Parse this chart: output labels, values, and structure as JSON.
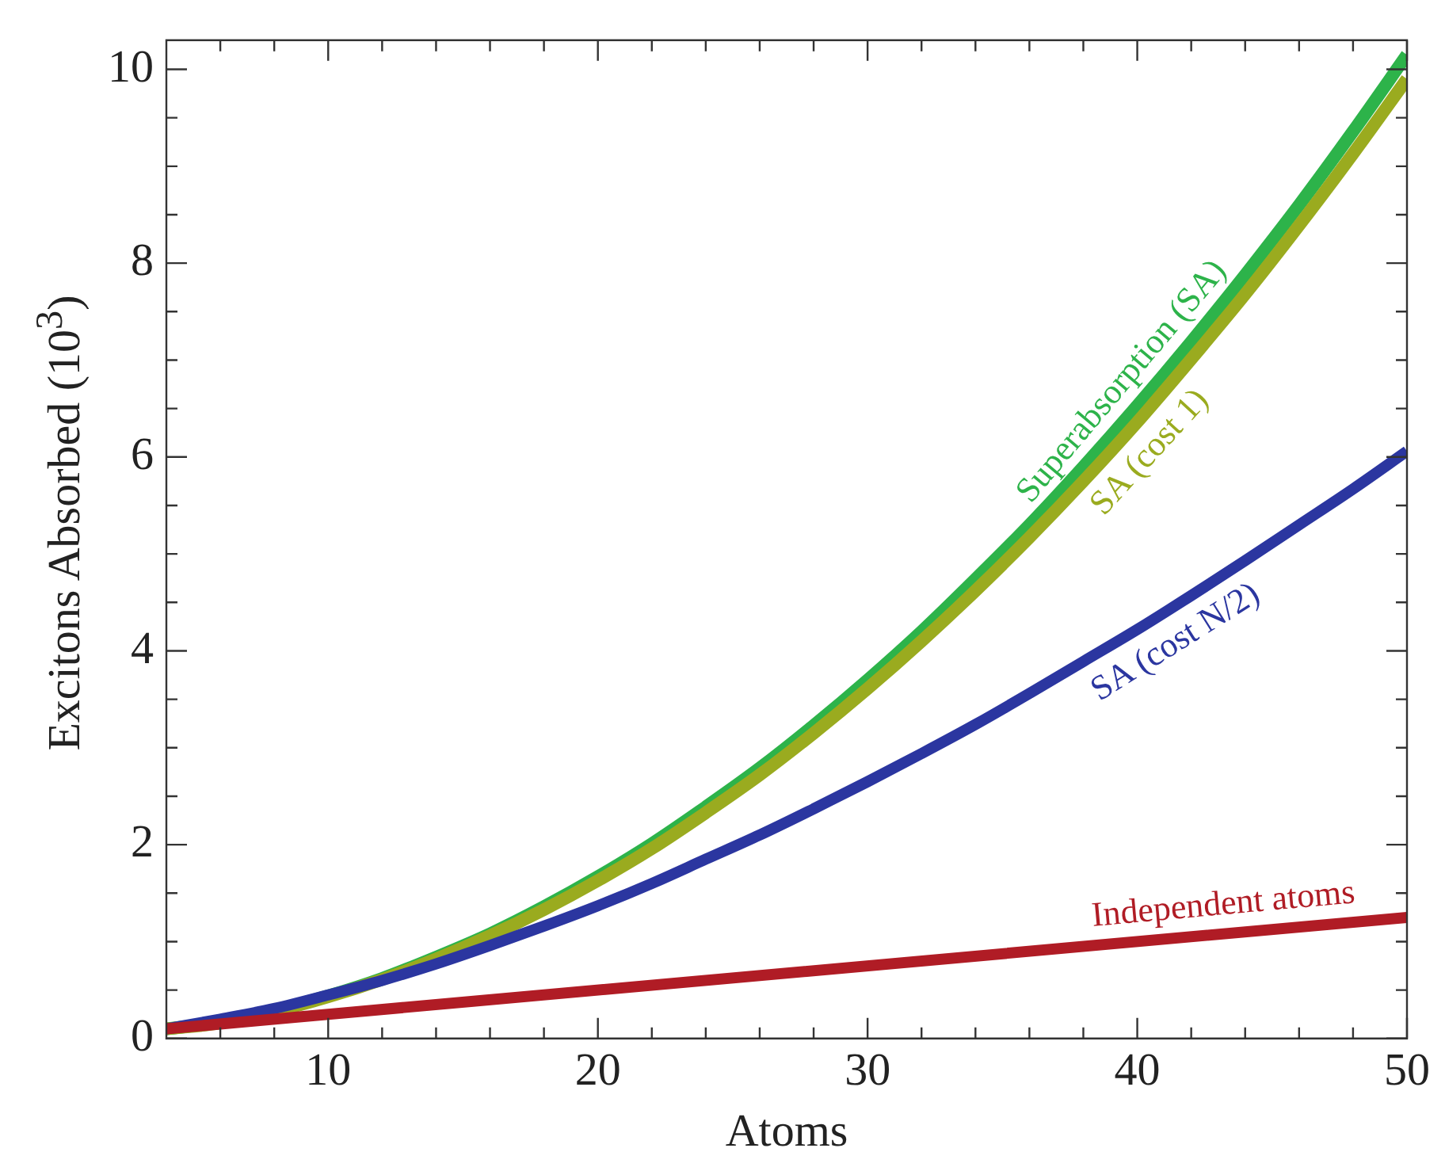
{
  "chart_data": {
    "type": "line",
    "xlabel": "Atoms",
    "ylabel": "Excitons  Absorbed (10$^{3}$)",
    "x": [
      4,
      6,
      8,
      10,
      12,
      14,
      16,
      18,
      20,
      22,
      24,
      26,
      28,
      30,
      32,
      34,
      36,
      38,
      40,
      42,
      44,
      46,
      48,
      50
    ],
    "series": [
      {
        "name": "Superabsorption (SA)",
        "color": "#2db34a",
        "values": [
          0.1,
          0.17,
          0.29,
          0.44,
          0.62,
          0.84,
          1.08,
          1.36,
          1.67,
          2.01,
          2.39,
          2.79,
          3.23,
          3.7,
          4.2,
          4.74,
          5.3,
          5.9,
          6.53,
          7.19,
          7.88,
          8.6,
          9.36,
          10.15
        ]
      },
      {
        "name": "SA (cost 1)",
        "color": "#9aab1f",
        "values": [
          0.1,
          0.16,
          0.28,
          0.43,
          0.61,
          0.82,
          1.06,
          1.33,
          1.63,
          1.96,
          2.33,
          2.72,
          3.15,
          3.61,
          4.1,
          4.62,
          5.17,
          5.75,
          6.36,
          7.01,
          7.68,
          8.39,
          9.13,
          9.9
        ]
      },
      {
        "name": "SA (cost N/2)",
        "color": "#2b36a0",
        "values": [
          0.1,
          0.2,
          0.31,
          0.45,
          0.6,
          0.77,
          0.96,
          1.16,
          1.37,
          1.6,
          1.85,
          2.1,
          2.37,
          2.65,
          2.94,
          3.24,
          3.56,
          3.89,
          4.22,
          4.57,
          4.93,
          5.3,
          5.67,
          6.06
        ]
      },
      {
        "name": "Independent atoms",
        "color": "#b01c25",
        "x": [
          4,
          50
        ],
        "values": [
          0.1,
          1.25
        ]
      }
    ],
    "xlim": [
      4,
      50
    ],
    "xticks": [
      {
        "value": 6,
        "label": null
      },
      {
        "value": 8,
        "label": null
      },
      10,
      {
        "value": 12,
        "label": null
      },
      {
        "value": 14,
        "label": null
      },
      {
        "value": 16,
        "label": null
      },
      {
        "value": 18,
        "label": null
      },
      20,
      {
        "value": 22,
        "label": null
      },
      {
        "value": 24,
        "label": null
      },
      {
        "value": 26,
        "label": null
      },
      {
        "value": 28,
        "label": null
      },
      30,
      {
        "value": 32,
        "label": null
      },
      {
        "value": 34,
        "label": null
      },
      {
        "value": 36,
        "label": null
      },
      {
        "value": 38,
        "label": null
      },
      40,
      {
        "value": 42,
        "label": null
      },
      {
        "value": 44,
        "label": null
      },
      {
        "value": 46,
        "label": null
      },
      {
        "value": 48,
        "label": null
      },
      50
    ],
    "ylim": [
      0,
      10.3
    ],
    "yticks": [
      0,
      {
        "value": 0.5,
        "label": null
      },
      {
        "value": 1,
        "label": null
      },
      {
        "value": 1.5,
        "label": null
      },
      2,
      {
        "value": 2.5,
        "label": null
      },
      {
        "value": 3,
        "label": null
      },
      {
        "value": 3.5,
        "label": null
      },
      4,
      {
        "value": 4.5,
        "label": null
      },
      {
        "value": 5,
        "label": null
      },
      {
        "value": 5.5,
        "label": null
      },
      6,
      {
        "value": 6.5,
        "label": null
      },
      {
        "value": 7,
        "label": null
      },
      {
        "value": 7.5,
        "label": null
      },
      8,
      {
        "value": 8.5,
        "label": null
      },
      {
        "value": 9,
        "label": null
      },
      {
        "value": 9.5,
        "label": null
      },
      10
    ],
    "grid": false,
    "legend": false,
    "marker": "none",
    "line_style": "solid"
  }
}
